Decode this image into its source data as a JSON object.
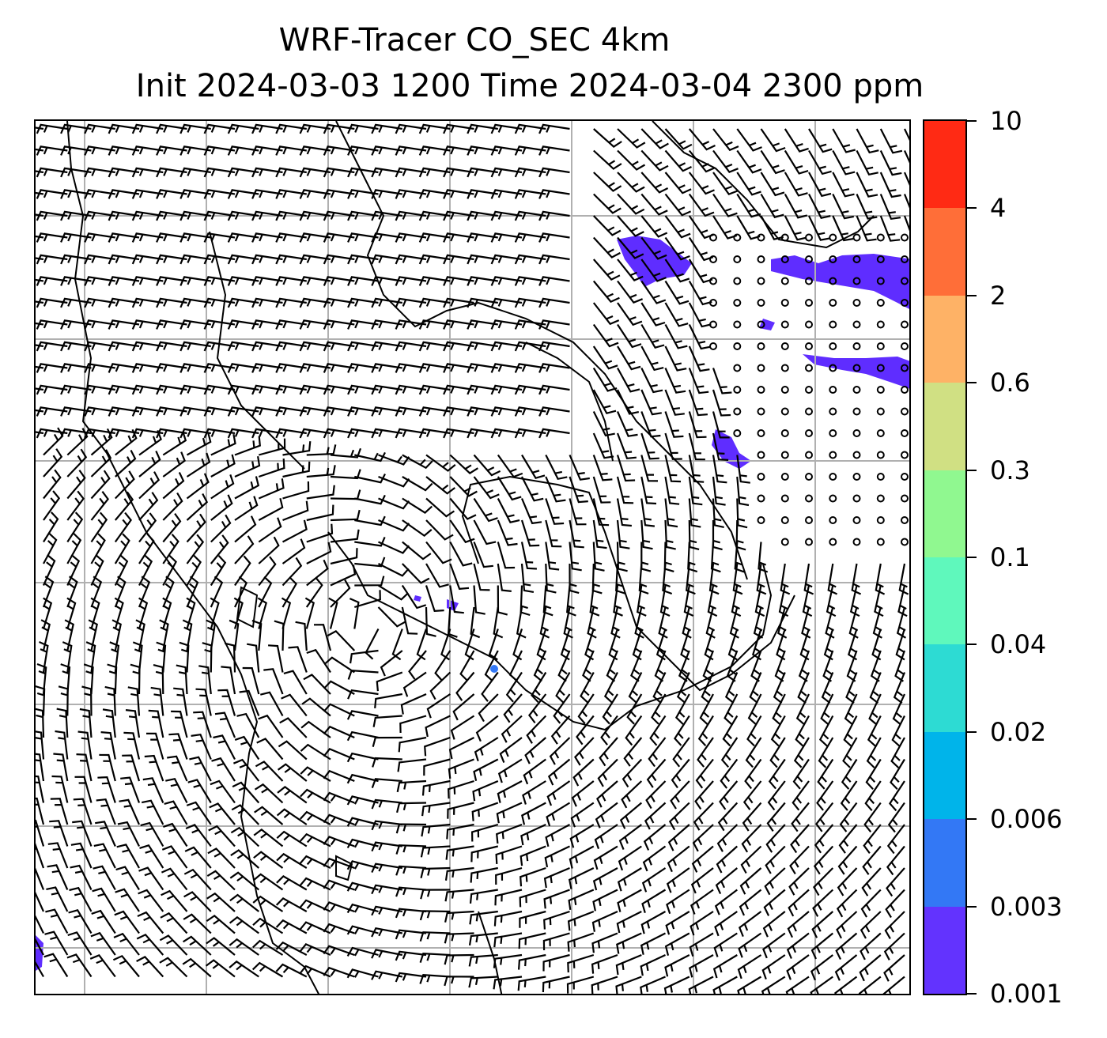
{
  "title": {
    "line1": "WRF-Tracer CO_SEC 4km",
    "line2": "Init 2024-03-03 1200 Time 2024-03-04 2300 ppm"
  },
  "map": {
    "field": "CO_SEC tracer concentration",
    "overlay": "wind barbs",
    "gridlines": true,
    "colors": {
      "gridline": "#b0b0b0",
      "coastline": "#000000",
      "barb": "#000000",
      "tracer_low": "#5f2dff"
    }
  },
  "colorbar": {
    "labels": [
      "0.001",
      "0.003",
      "0.006",
      "0.02",
      "0.04",
      "0.1",
      "0.3",
      "0.6",
      "2",
      "4",
      "10"
    ],
    "colors": [
      "#6333fe",
      "#3378f5",
      "#00b4ea",
      "#2ddbd3",
      "#5ff8bc",
      "#90f890",
      "#d0e083",
      "#feb266",
      "#ff6e38",
      "#ff2a14"
    ]
  }
}
